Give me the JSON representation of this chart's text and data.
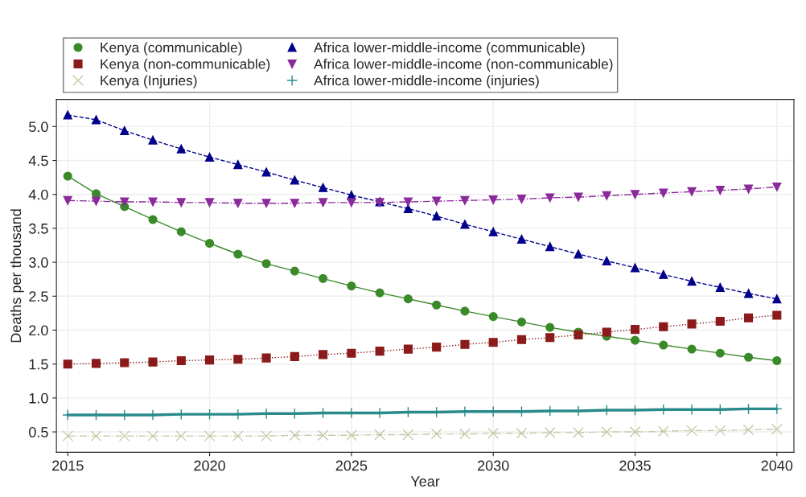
{
  "chart_data": {
    "type": "line",
    "xlabel": "Year",
    "ylabel": "Deaths per thousand",
    "x": [
      2015,
      2016,
      2017,
      2018,
      2019,
      2020,
      2021,
      2022,
      2023,
      2024,
      2025,
      2026,
      2027,
      2028,
      2029,
      2030,
      2031,
      2032,
      2033,
      2034,
      2035,
      2036,
      2037,
      2038,
      2039,
      2040
    ],
    "series": [
      {
        "name": "Kenya (communicable)",
        "color": "#3a8a2a",
        "marker": "circle",
        "line_style": "solid",
        "values": [
          4.27,
          4.01,
          3.82,
          3.63,
          3.45,
          3.28,
          3.12,
          2.98,
          2.87,
          2.76,
          2.65,
          2.55,
          2.46,
          2.37,
          2.28,
          2.2,
          2.12,
          2.04,
          1.97,
          1.91,
          1.85,
          1.78,
          1.72,
          1.66,
          1.6,
          1.55
        ]
      },
      {
        "name": "Africa lower-middle-income (communicable)",
        "color": "#00008b",
        "marker": "triangle",
        "line_style": "dashed",
        "values": [
          5.17,
          5.1,
          4.94,
          4.8,
          4.67,
          4.55,
          4.44,
          4.33,
          4.21,
          4.1,
          3.99,
          3.89,
          3.79,
          3.68,
          3.56,
          3.45,
          3.34,
          3.23,
          3.12,
          3.02,
          2.92,
          2.82,
          2.72,
          2.63,
          2.54,
          2.46
        ]
      },
      {
        "name": "Kenya (non-communicable)",
        "color": "#8b1a1a",
        "marker": "square",
        "line_style": "dotted",
        "values": [
          1.5,
          1.51,
          1.52,
          1.53,
          1.55,
          1.56,
          1.57,
          1.59,
          1.61,
          1.64,
          1.66,
          1.69,
          1.72,
          1.75,
          1.79,
          1.82,
          1.86,
          1.89,
          1.93,
          1.97,
          2.01,
          2.05,
          2.09,
          2.13,
          2.18,
          2.22
        ]
      },
      {
        "name": "Africa lower-middle-income (non-communicable)",
        "color": "#8b2a9b",
        "marker": "triangle_down",
        "line_style": "dashed",
        "values": [
          3.91,
          3.9,
          3.89,
          3.89,
          3.88,
          3.88,
          3.87,
          3.87,
          3.87,
          3.88,
          3.88,
          3.88,
          3.89,
          3.9,
          3.91,
          3.92,
          3.93,
          3.95,
          3.96,
          3.98,
          4.0,
          4.02,
          4.04,
          4.06,
          4.08,
          4.11
        ]
      },
      {
        "name": "Kenya (Injuries)",
        "color": "#c8c8a8",
        "marker": "cross",
        "line_style": "dashed",
        "values": [
          0.44,
          0.44,
          0.44,
          0.44,
          0.44,
          0.44,
          0.44,
          0.44,
          0.45,
          0.45,
          0.45,
          0.46,
          0.46,
          0.47,
          0.47,
          0.48,
          0.48,
          0.49,
          0.49,
          0.5,
          0.5,
          0.51,
          0.52,
          0.52,
          0.53,
          0.54
        ]
      },
      {
        "name": "Africa lower-middle-income (injuries)",
        "color": "#2a8a8a",
        "marker": "plus",
        "line_style": "solid",
        "values": [
          0.75,
          0.75,
          0.75,
          0.75,
          0.76,
          0.76,
          0.76,
          0.77,
          0.77,
          0.78,
          0.78,
          0.78,
          0.79,
          0.79,
          0.8,
          0.8,
          0.8,
          0.81,
          0.81,
          0.82,
          0.82,
          0.83,
          0.83,
          0.83,
          0.84,
          0.84
        ]
      }
    ],
    "xlim": [
      2014.6,
      2040.6
    ],
    "xticks": [
      2015,
      2020,
      2025,
      2030,
      2035,
      2040
    ],
    "ylim": [
      0.2,
      5.4
    ],
    "yticks": [
      0.5,
      {
        "value": 1,
        "label": "1.0"
      },
      1.5,
      {
        "value": 2,
        "label": "2.0"
      },
      2.5,
      {
        "value": 3,
        "label": "3.0"
      },
      3.5,
      {
        "value": 4,
        "label": "4.0"
      },
      4.5,
      {
        "value": 5,
        "label": "5.0"
      }
    ],
    "grid": true,
    "legend": "top left"
  }
}
